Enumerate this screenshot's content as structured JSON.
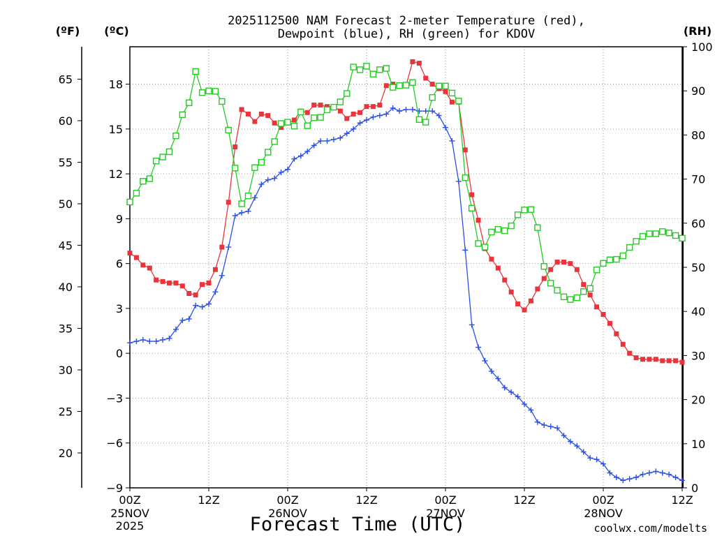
{
  "title_line1": "2025112500 NAM Forecast 2-meter Temperature (red),",
  "title_line2": "Dewpoint (blue), RH (green) for KDOV",
  "unit_f": "(ºF)",
  "unit_c": "(ºC)",
  "unit_rh": "(RH)",
  "xlabel": "Forecast Time (UTC)",
  "credit": "coolwx.com/modelts",
  "colors": {
    "temperature": "#e8343a",
    "dewpoint": "#2a4ee8",
    "rh": "#22cc22",
    "credit": "#e8343a"
  },
  "chart_data": {
    "type": "line",
    "x_unit": "forecast hour",
    "xlim": [
      0,
      84
    ],
    "ylim_c": [
      -9,
      20.5
    ],
    "ylim_rh": [
      0,
      100
    ],
    "grid": true,
    "c_ticks": [
      "-9",
      "-6",
      "-3",
      "0",
      "3",
      "6",
      "9",
      "12",
      "15",
      "18"
    ],
    "f_ticks": [
      "20",
      "25",
      "30",
      "35",
      "40",
      "45",
      "50",
      "55",
      "60",
      "65"
    ],
    "rh_ticks": [
      "0",
      "10",
      "20",
      "30",
      "40",
      "50",
      "60",
      "70",
      "80",
      "90",
      "100"
    ],
    "x_ticks": [
      {
        "hour": 0,
        "label": "00Z",
        "sub1": "25NOV",
        "sub2": "2025"
      },
      {
        "hour": 12,
        "label": "12Z",
        "sub1": "",
        "sub2": ""
      },
      {
        "hour": 24,
        "label": "00Z",
        "sub1": "26NOV",
        "sub2": ""
      },
      {
        "hour": 36,
        "label": "12Z",
        "sub1": "",
        "sub2": ""
      },
      {
        "hour": 48,
        "label": "00Z",
        "sub1": "27NOV",
        "sub2": ""
      },
      {
        "hour": 60,
        "label": "12Z",
        "sub1": "",
        "sub2": ""
      },
      {
        "hour": 72,
        "label": "00Z",
        "sub1": "28NOV",
        "sub2": ""
      },
      {
        "hour": 84,
        "label": "12Z",
        "sub1": "",
        "sub2": ""
      }
    ],
    "series": [
      {
        "id": "temperature",
        "unit": "C",
        "marker": "filled-square",
        "points": [
          [
            0,
            6.7
          ],
          [
            1,
            6.4
          ],
          [
            2,
            5.9
          ],
          [
            3,
            5.7
          ],
          [
            4,
            4.9
          ],
          [
            5,
            4.8
          ],
          [
            6,
            4.7
          ],
          [
            7,
            4.7
          ],
          [
            8,
            4.5
          ],
          [
            9,
            4.0
          ],
          [
            10,
            3.9
          ],
          [
            11,
            4.6
          ],
          [
            12,
            4.7
          ],
          [
            13,
            5.6
          ],
          [
            14,
            7.1
          ],
          [
            15,
            10.1
          ],
          [
            16,
            13.8
          ],
          [
            17,
            16.3
          ],
          [
            18,
            16.0
          ],
          [
            19,
            15.5
          ],
          [
            20,
            16.0
          ],
          [
            21,
            15.9
          ],
          [
            22,
            15.4
          ],
          [
            23,
            15.1
          ],
          [
            24,
            15.4
          ],
          [
            25,
            15.6
          ],
          [
            26,
            16.2
          ],
          [
            27,
            16.1
          ],
          [
            28,
            16.6
          ],
          [
            29,
            16.6
          ],
          [
            30,
            16.5
          ],
          [
            31,
            16.5
          ],
          [
            32,
            16.2
          ],
          [
            33,
            15.7
          ],
          [
            34,
            16.0
          ],
          [
            35,
            16.1
          ],
          [
            36,
            16.5
          ],
          [
            37,
            16.5
          ],
          [
            38,
            16.6
          ],
          [
            39,
            17.9
          ],
          [
            40,
            18.0
          ],
          [
            41,
            17.9
          ],
          [
            42,
            17.9
          ],
          [
            43,
            19.5
          ],
          [
            44,
            19.4
          ],
          [
            45,
            18.4
          ],
          [
            46,
            18.0
          ],
          [
            47,
            17.7
          ],
          [
            48,
            17.5
          ],
          [
            49,
            16.8
          ],
          [
            50,
            16.8
          ],
          [
            51,
            13.6
          ],
          [
            52,
            10.6
          ],
          [
            53,
            8.9
          ],
          [
            54,
            7.0
          ],
          [
            55,
            6.3
          ],
          [
            56,
            5.7
          ],
          [
            57,
            4.9
          ],
          [
            58,
            4.1
          ],
          [
            59,
            3.3
          ],
          [
            60,
            2.9
          ],
          [
            61,
            3.5
          ],
          [
            62,
            4.3
          ],
          [
            63,
            5.0
          ],
          [
            64,
            5.6
          ],
          [
            65,
            6.1
          ],
          [
            66,
            6.1
          ],
          [
            67,
            6.0
          ],
          [
            68,
            5.6
          ],
          [
            69,
            4.6
          ],
          [
            70,
            3.9
          ],
          [
            71,
            3.1
          ],
          [
            72,
            2.6
          ],
          [
            73,
            2.0
          ],
          [
            74,
            1.3
          ],
          [
            75,
            0.6
          ],
          [
            76,
            0.0
          ],
          [
            77,
            -0.3
          ],
          [
            78,
            -0.4
          ],
          [
            79,
            -0.4
          ],
          [
            80,
            -0.4
          ],
          [
            81,
            -0.5
          ],
          [
            82,
            -0.5
          ],
          [
            83,
            -0.5
          ],
          [
            84,
            -0.6
          ]
        ]
      },
      {
        "id": "dewpoint",
        "unit": "C",
        "marker": "plus",
        "points": [
          [
            0,
            0.7
          ],
          [
            1,
            0.8
          ],
          [
            2,
            0.9
          ],
          [
            3,
            0.8
          ],
          [
            4,
            0.8
          ],
          [
            5,
            0.9
          ],
          [
            6,
            1.0
          ],
          [
            7,
            1.6
          ],
          [
            8,
            2.2
          ],
          [
            9,
            2.3
          ],
          [
            10,
            3.2
          ],
          [
            11,
            3.1
          ],
          [
            12,
            3.3
          ],
          [
            13,
            4.1
          ],
          [
            14,
            5.2
          ],
          [
            15,
            7.1
          ],
          [
            16,
            9.2
          ],
          [
            17,
            9.4
          ],
          [
            18,
            9.5
          ],
          [
            19,
            10.4
          ],
          [
            20,
            11.3
          ],
          [
            21,
            11.6
          ],
          [
            22,
            11.7
          ],
          [
            23,
            12.1
          ],
          [
            24,
            12.3
          ],
          [
            25,
            13.0
          ],
          [
            26,
            13.2
          ],
          [
            27,
            13.5
          ],
          [
            28,
            13.9
          ],
          [
            29,
            14.2
          ],
          [
            30,
            14.2
          ],
          [
            31,
            14.3
          ],
          [
            32,
            14.4
          ],
          [
            33,
            14.7
          ],
          [
            34,
            15.0
          ],
          [
            35,
            15.4
          ],
          [
            36,
            15.6
          ],
          [
            37,
            15.8
          ],
          [
            38,
            15.9
          ],
          [
            39,
            16.0
          ],
          [
            40,
            16.4
          ],
          [
            41,
            16.2
          ],
          [
            42,
            16.3
          ],
          [
            43,
            16.3
          ],
          [
            44,
            16.2
          ],
          [
            45,
            16.2
          ],
          [
            46,
            16.2
          ],
          [
            47,
            15.9
          ],
          [
            48,
            15.1
          ],
          [
            49,
            14.2
          ],
          [
            50,
            11.5
          ],
          [
            51,
            6.9
          ],
          [
            52,
            1.9
          ],
          [
            53,
            0.4
          ],
          [
            54,
            -0.5
          ],
          [
            55,
            -1.2
          ],
          [
            56,
            -1.7
          ],
          [
            57,
            -2.3
          ],
          [
            58,
            -2.6
          ],
          [
            59,
            -2.9
          ],
          [
            60,
            -3.4
          ],
          [
            61,
            -3.8
          ],
          [
            62,
            -4.6
          ],
          [
            63,
            -4.8
          ],
          [
            64,
            -4.9
          ],
          [
            65,
            -5.0
          ],
          [
            66,
            -5.5
          ],
          [
            67,
            -5.9
          ],
          [
            68,
            -6.2
          ],
          [
            69,
            -6.6
          ],
          [
            70,
            -7.0
          ],
          [
            71,
            -7.1
          ],
          [
            72,
            -7.4
          ],
          [
            73,
            -8.0
          ],
          [
            74,
            -8.3
          ],
          [
            75,
            -8.5
          ],
          [
            76,
            -8.4
          ],
          [
            77,
            -8.3
          ],
          [
            78,
            -8.1
          ],
          [
            79,
            -8.0
          ],
          [
            80,
            -7.9
          ],
          [
            81,
            -8.0
          ],
          [
            82,
            -8.1
          ],
          [
            83,
            -8.3
          ],
          [
            84,
            -8.5
          ]
        ]
      },
      {
        "id": "rh",
        "unit": "%",
        "marker": "open-square",
        "points": [
          [
            0,
            64.8
          ],
          [
            1,
            66.8
          ],
          [
            2,
            69.5
          ],
          [
            3,
            70.1
          ],
          [
            4,
            74.1
          ],
          [
            5,
            75.0
          ],
          [
            6,
            76.2
          ],
          [
            7,
            79.8
          ],
          [
            8,
            84.6
          ],
          [
            9,
            87.3
          ],
          [
            10,
            94.4
          ],
          [
            11,
            89.6
          ],
          [
            12,
            90.0
          ],
          [
            13,
            89.9
          ],
          [
            14,
            87.6
          ],
          [
            15,
            81.1
          ],
          [
            16,
            72.5
          ],
          [
            17,
            64.4
          ],
          [
            18,
            66.2
          ],
          [
            19,
            72.6
          ],
          [
            20,
            73.8
          ],
          [
            21,
            76.1
          ],
          [
            22,
            78.5
          ],
          [
            23,
            82.6
          ],
          [
            24,
            82.9
          ],
          [
            25,
            82.0
          ],
          [
            26,
            85.2
          ],
          [
            27,
            82.1
          ],
          [
            28,
            83.9
          ],
          [
            29,
            84.0
          ],
          [
            30,
            85.7
          ],
          [
            31,
            86.3
          ],
          [
            32,
            87.5
          ],
          [
            33,
            89.4
          ],
          [
            34,
            95.4
          ],
          [
            35,
            94.8
          ],
          [
            36,
            95.6
          ],
          [
            37,
            93.8
          ],
          [
            38,
            94.8
          ],
          [
            39,
            95.1
          ],
          [
            40,
            90.8
          ],
          [
            41,
            91.2
          ],
          [
            42,
            91.3
          ],
          [
            43,
            91.9
          ],
          [
            44,
            83.5
          ],
          [
            45,
            82.9
          ],
          [
            46,
            88.5
          ],
          [
            47,
            91.1
          ],
          [
            48,
            91.1
          ],
          [
            49,
            89.5
          ],
          [
            50,
            87.7
          ],
          [
            51,
            70.3
          ],
          [
            52,
            63.4
          ],
          [
            53,
            55.4
          ],
          [
            54,
            54.6
          ],
          [
            55,
            58.0
          ],
          [
            56,
            58.6
          ],
          [
            57,
            58.3
          ],
          [
            58,
            59.4
          ],
          [
            59,
            61.9
          ],
          [
            60,
            63.0
          ],
          [
            61,
            63.1
          ],
          [
            62,
            59.0
          ],
          [
            63,
            50.2
          ],
          [
            64,
            46.4
          ],
          [
            65,
            44.8
          ],
          [
            66,
            43.3
          ],
          [
            67,
            42.7
          ],
          [
            68,
            43.1
          ],
          [
            69,
            44.5
          ],
          [
            70,
            45.2
          ],
          [
            71,
            49.4
          ],
          [
            72,
            50.9
          ],
          [
            73,
            51.7
          ],
          [
            74,
            51.8
          ],
          [
            75,
            52.6
          ],
          [
            76,
            54.5
          ],
          [
            77,
            55.9
          ],
          [
            78,
            57.0
          ],
          [
            79,
            57.6
          ],
          [
            80,
            57.6
          ],
          [
            81,
            58.1
          ],
          [
            82,
            57.8
          ],
          [
            83,
            57.2
          ],
          [
            84,
            56.6
          ]
        ]
      }
    ]
  }
}
